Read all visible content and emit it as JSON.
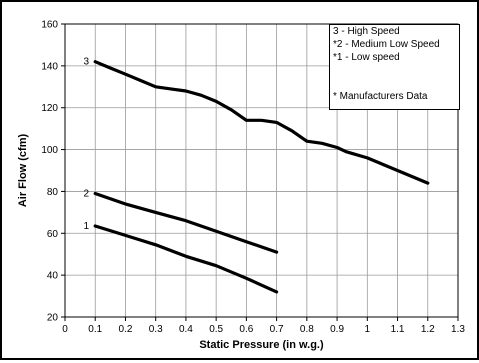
{
  "chart_data": {
    "type": "line",
    "xlabel": "Static Pressure (in w.g.)",
    "ylabel": "Air Flow (cfm)",
    "xlim": [
      0,
      1.3
    ],
    "ylim": [
      20,
      160
    ],
    "x_ticks": [
      "0",
      "0.1",
      "0.2",
      "0.3",
      "0.4",
      "0.5",
      "0.6",
      "0.7",
      "0.8",
      "0.9",
      "1",
      "1.1",
      "1.2",
      "1.3"
    ],
    "y_ticks": [
      "20",
      "40",
      "60",
      "80",
      "100",
      "120",
      "140",
      "160"
    ],
    "grid": true,
    "series": [
      {
        "name": "3",
        "x": [
          0.1,
          0.15,
          0.2,
          0.25,
          0.3,
          0.35,
          0.4,
          0.45,
          0.5,
          0.55,
          0.6,
          0.65,
          0.7,
          0.75,
          0.8,
          0.85,
          0.9,
          0.93,
          1.0,
          1.1,
          1.2
        ],
        "y": [
          142,
          139,
          136,
          133,
          130,
          129,
          128,
          126,
          123,
          119,
          114,
          114,
          113,
          109,
          104,
          103,
          101,
          99,
          96,
          90,
          84
        ]
      },
      {
        "name": "2",
        "x": [
          0.1,
          0.2,
          0.3,
          0.4,
          0.5,
          0.6,
          0.7
        ],
        "y": [
          79,
          74,
          70,
          66,
          61,
          56,
          51
        ]
      },
      {
        "name": "1",
        "x": [
          0.1,
          0.2,
          0.3,
          0.4,
          0.5,
          0.6,
          0.7
        ],
        "y": [
          63.5,
          59,
          54.5,
          49,
          44.5,
          38.5,
          32
        ]
      }
    ]
  },
  "legend": {
    "line1": "3 - High Speed",
    "line2": "*2 - Medium Low Speed",
    "line3": "*1 - Low speed",
    "line4": "* Manufacturers Data"
  }
}
